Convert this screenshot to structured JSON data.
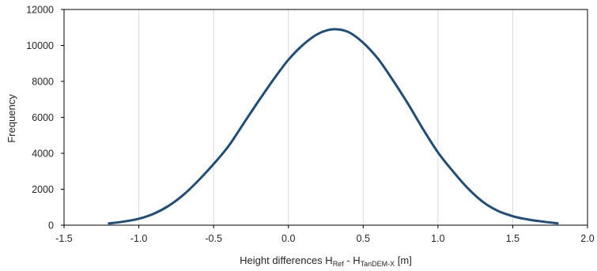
{
  "chart_data": {
    "type": "line",
    "xlabel": {
      "prefix": "Height differences H",
      "sub1": "Ref",
      "middle": " - H",
      "sub2": "TanDEM-X",
      "suffix": " [m]"
    },
    "ylabel": "Frequency",
    "xlim": [
      -1.5,
      2.0
    ],
    "ylim": [
      0,
      12000
    ],
    "xticks": [
      "-1.5",
      "-1.0",
      "-0.5",
      "0.0",
      "0.5",
      "1.0",
      "1.5",
      "2.0"
    ],
    "yticks": [
      "0",
      "2000",
      "4000",
      "6000",
      "8000",
      "10000",
      "12000"
    ],
    "grid": "vertical",
    "series": [
      {
        "color": "#1f4e79",
        "x": [
          -1.2,
          -1.1,
          -1.0,
          -0.9,
          -0.8,
          -0.7,
          -0.6,
          -0.5,
          -0.4,
          -0.3,
          -0.2,
          -0.1,
          0.0,
          0.1,
          0.2,
          0.3,
          0.4,
          0.5,
          0.6,
          0.7,
          0.8,
          0.9,
          1.0,
          1.1,
          1.2,
          1.3,
          1.4,
          1.5,
          1.6,
          1.7,
          1.8
        ],
        "y": [
          100,
          200,
          360,
          640,
          1080,
          1700,
          2500,
          3400,
          4400,
          5650,
          6900,
          8100,
          9200,
          10050,
          10650,
          10900,
          10750,
          10150,
          9250,
          8050,
          6750,
          5350,
          4050,
          3000,
          2050,
          1300,
          800,
          500,
          320,
          200,
          100
        ]
      }
    ]
  }
}
